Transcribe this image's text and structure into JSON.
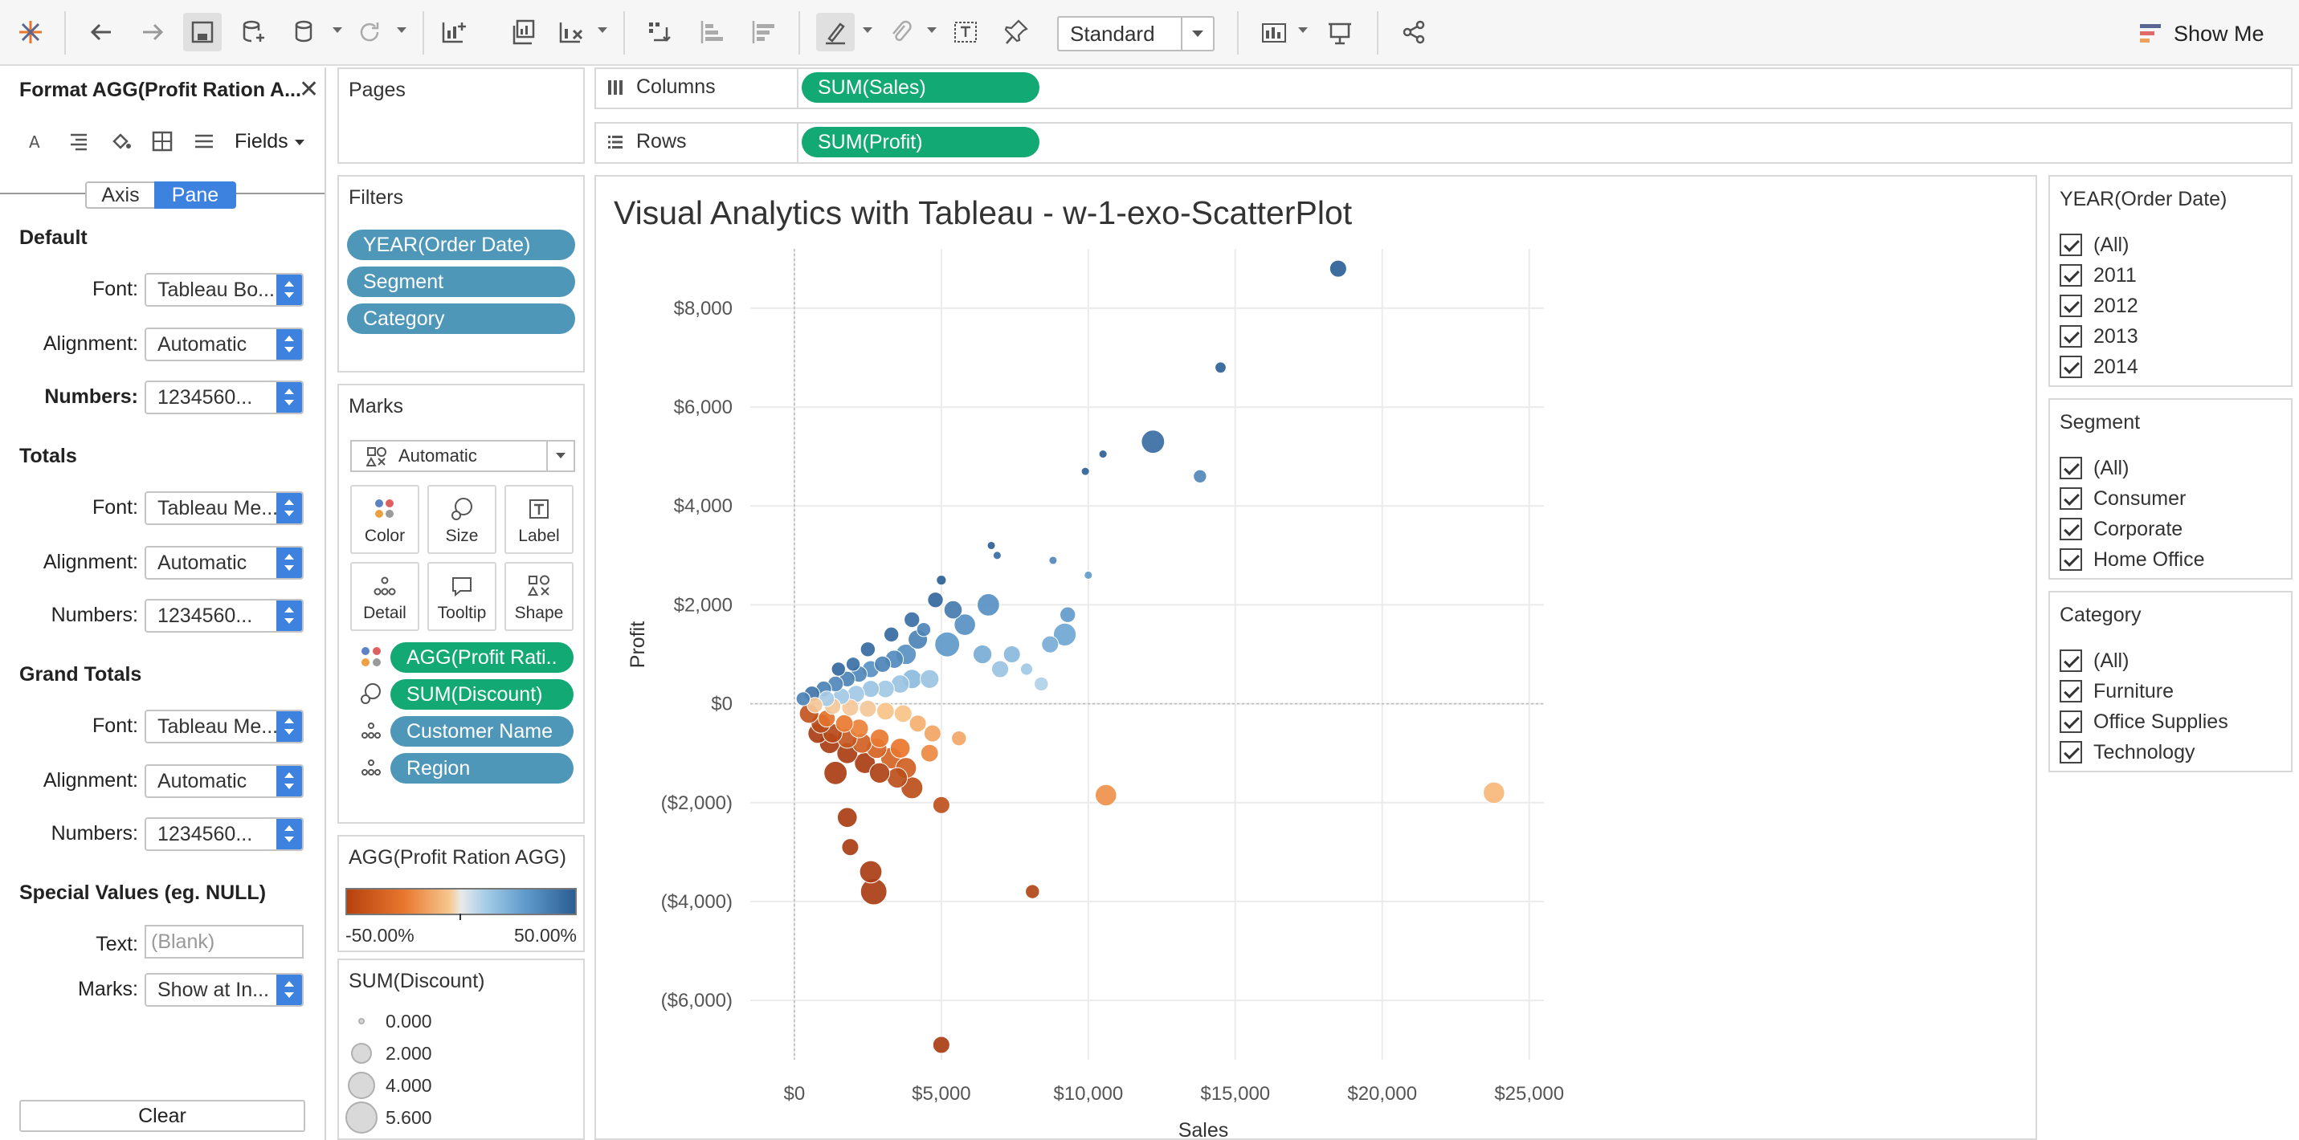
{
  "toolbar": {
    "view_mode": "Standard",
    "show_me_label": "Show Me"
  },
  "format_pane": {
    "title": "Format AGG(Profit Ration A...",
    "fields_label": "Fields",
    "tabs": {
      "axis": "Axis",
      "pane": "Pane"
    },
    "default": {
      "title": "Default",
      "font_label": "Font:",
      "font_value": "Tableau Bo...",
      "alignment_label": "Alignment:",
      "alignment_value": "Automatic",
      "numbers_label": "Numbers:",
      "numbers_value": "1234560..."
    },
    "totals": {
      "title": "Totals",
      "font_label": "Font:",
      "font_value": "Tableau Me...",
      "alignment_label": "Alignment:",
      "alignment_value": "Automatic",
      "numbers_label": "Numbers:",
      "numbers_value": "1234560..."
    },
    "grand_totals": {
      "title": "Grand Totals",
      "font_label": "Font:",
      "font_value": "Tableau Me...",
      "alignment_label": "Alignment:",
      "alignment_value": "Automatic",
      "numbers_label": "Numbers:",
      "numbers_value": "1234560..."
    },
    "special": {
      "title": "Special Values (eg. NULL)",
      "text_label": "Text:",
      "text_placeholder": "(Blank)",
      "marks_label": "Marks:",
      "marks_value": "Show at In..."
    },
    "clear_label": "Clear"
  },
  "pages": {
    "title": "Pages"
  },
  "filters": {
    "title": "Filters",
    "pills": [
      "YEAR(Order Date)",
      "Segment",
      "Category"
    ]
  },
  "marks": {
    "title": "Marks",
    "type": "Automatic",
    "buttons": [
      "Color",
      "Size",
      "Label",
      "Detail",
      "Tooltip",
      "Shape"
    ],
    "fields": [
      {
        "icon": "color",
        "label": "AGG(Profit Rati..",
        "color": "green"
      },
      {
        "icon": "size",
        "label": "SUM(Discount)",
        "color": "green"
      },
      {
        "icon": "detail",
        "label": "Customer Name",
        "color": "blue"
      },
      {
        "icon": "detail",
        "label": "Region",
        "color": "blue"
      }
    ]
  },
  "color_legend": {
    "title": "AGG(Profit Ration AGG)",
    "min_label": "-50.00%",
    "max_label": "50.00%"
  },
  "size_legend": {
    "title": "SUM(Discount)",
    "items": [
      "0.000",
      "2.000",
      "4.000",
      "5.600"
    ]
  },
  "shelves": {
    "columns_label": "Columns",
    "columns_pill": "SUM(Sales)",
    "rows_label": "Rows",
    "rows_pill": "SUM(Profit)"
  },
  "viz": {
    "title": "Visual Analytics with Tableau - w-1-exo-ScatterPlot"
  },
  "chart_data": {
    "type": "scatter",
    "title": "Visual Analytics with Tableau - w-1-exo-ScatterPlot",
    "xlabel": "Sales",
    "ylabel": "Profit",
    "xlim": [
      -1500,
      25500
    ],
    "ylim": [
      -7200,
      9200
    ],
    "x_ticks": [
      0,
      5000,
      10000,
      15000,
      20000,
      25000
    ],
    "x_tick_labels": [
      "$0",
      "$5,000",
      "$10,000",
      "$15,000",
      "$20,000",
      "$25,000"
    ],
    "y_ticks": [
      -6000,
      -4000,
      -2000,
      0,
      2000,
      4000,
      6000,
      8000
    ],
    "y_tick_labels": [
      "($6,000)",
      "($4,000)",
      "($2,000)",
      "$0",
      "$2,000",
      "$4,000",
      "$6,000",
      "$8,000"
    ],
    "color_field": "AGG(Profit Ration AGG)",
    "color_range": [
      -0.5,
      0.5
    ],
    "size_field": "SUM(Discount)",
    "size_range": [
      0,
      5.6
    ],
    "grid": true,
    "points": [
      {
        "x": 18500,
        "y": 8800,
        "ratio": 0.48,
        "discount": 1.0
      },
      {
        "x": 14500,
        "y": 6800,
        "ratio": 0.47,
        "discount": 0.3
      },
      {
        "x": 12200,
        "y": 5300,
        "ratio": 0.43,
        "discount": 2.2
      },
      {
        "x": 13800,
        "y": 4600,
        "ratio": 0.33,
        "discount": 0.5
      },
      {
        "x": 10500,
        "y": 5050,
        "ratio": 0.48,
        "discount": 0.1
      },
      {
        "x": 9900,
        "y": 4700,
        "ratio": 0.47,
        "discount": 0.1
      },
      {
        "x": 6700,
        "y": 3200,
        "ratio": 0.48,
        "discount": 0.1
      },
      {
        "x": 8800,
        "y": 2900,
        "ratio": 0.33,
        "discount": 0.1
      },
      {
        "x": 10000,
        "y": 2600,
        "ratio": 0.26,
        "discount": 0.1
      },
      {
        "x": 6900,
        "y": 3000,
        "ratio": 0.43,
        "discount": 0.1
      },
      {
        "x": 6600,
        "y": 2000,
        "ratio": 0.3,
        "discount": 2.0
      },
      {
        "x": 9300,
        "y": 1800,
        "ratio": 0.26,
        "discount": 0.8
      },
      {
        "x": 9200,
        "y": 1400,
        "ratio": 0.22,
        "discount": 2.1
      },
      {
        "x": 8700,
        "y": 1200,
        "ratio": 0.2,
        "discount": 1.0
      },
      {
        "x": 5400,
        "y": 1900,
        "ratio": 0.38,
        "discount": 1.2
      },
      {
        "x": 5800,
        "y": 1600,
        "ratio": 0.3,
        "discount": 1.8
      },
      {
        "x": 5200,
        "y": 1200,
        "ratio": 0.27,
        "discount": 2.6
      },
      {
        "x": 6400,
        "y": 1000,
        "ratio": 0.2,
        "discount": 1.3
      },
      {
        "x": 7400,
        "y": 1000,
        "ratio": 0.16,
        "discount": 1.0
      },
      {
        "x": 7000,
        "y": 700,
        "ratio": 0.12,
        "discount": 1.0
      },
      {
        "x": 7900,
        "y": 700,
        "ratio": 0.1,
        "discount": 0.4
      },
      {
        "x": 8400,
        "y": 400,
        "ratio": 0.07,
        "discount": 0.6
      },
      {
        "x": 4200,
        "y": 1300,
        "ratio": 0.35,
        "discount": 1.4
      },
      {
        "x": 3800,
        "y": 1000,
        "ratio": 0.3,
        "discount": 1.6
      },
      {
        "x": 3400,
        "y": 900,
        "ratio": 0.32,
        "discount": 1.2
      },
      {
        "x": 3000,
        "y": 800,
        "ratio": 0.35,
        "discount": 0.9
      },
      {
        "x": 2600,
        "y": 700,
        "ratio": 0.3,
        "discount": 1.0
      },
      {
        "x": 2200,
        "y": 600,
        "ratio": 0.33,
        "discount": 0.9
      },
      {
        "x": 1800,
        "y": 500,
        "ratio": 0.35,
        "discount": 0.8
      },
      {
        "x": 1400,
        "y": 400,
        "ratio": 0.33,
        "discount": 0.8
      },
      {
        "x": 1000,
        "y": 300,
        "ratio": 0.35,
        "discount": 0.8
      },
      {
        "x": 600,
        "y": 200,
        "ratio": 0.4,
        "discount": 0.8
      },
      {
        "x": 300,
        "y": 100,
        "ratio": 0.35,
        "discount": 0.6
      },
      {
        "x": 4600,
        "y": 500,
        "ratio": 0.12,
        "discount": 1.3
      },
      {
        "x": 4000,
        "y": 500,
        "ratio": 0.15,
        "discount": 1.4
      },
      {
        "x": 3600,
        "y": 400,
        "ratio": 0.12,
        "discount": 1.2
      },
      {
        "x": 3100,
        "y": 300,
        "ratio": 0.1,
        "discount": 1.1
      },
      {
        "x": 2600,
        "y": 300,
        "ratio": 0.12,
        "discount": 1.0
      },
      {
        "x": 2100,
        "y": 200,
        "ratio": 0.1,
        "discount": 1.0
      },
      {
        "x": 1600,
        "y": 150,
        "ratio": 0.1,
        "discount": 0.9
      },
      {
        "x": 1100,
        "y": 100,
        "ratio": 0.09,
        "discount": 0.8
      },
      {
        "x": 4400,
        "y": 1500,
        "ratio": 0.34,
        "discount": 0.6
      },
      {
        "x": 4800,
        "y": 2100,
        "ratio": 0.45,
        "discount": 0.8
      },
      {
        "x": 5000,
        "y": 2500,
        "ratio": 0.48,
        "discount": 0.2
      },
      {
        "x": 4000,
        "y": 1700,
        "ratio": 0.42,
        "discount": 0.8
      },
      {
        "x": 3300,
        "y": 1400,
        "ratio": 0.44,
        "discount": 0.7
      },
      {
        "x": 2500,
        "y": 1100,
        "ratio": 0.44,
        "discount": 0.7
      },
      {
        "x": 2000,
        "y": 800,
        "ratio": 0.42,
        "discount": 0.6
      },
      {
        "x": 1500,
        "y": 700,
        "ratio": 0.45,
        "discount": 0.6
      },
      {
        "x": 3700,
        "y": -200,
        "ratio": -0.05,
        "discount": 1.1
      },
      {
        "x": 3100,
        "y": -150,
        "ratio": -0.05,
        "discount": 1.1
      },
      {
        "x": 2500,
        "y": -100,
        "ratio": -0.04,
        "discount": 1.0
      },
      {
        "x": 1900,
        "y": -80,
        "ratio": -0.04,
        "discount": 1.0
      },
      {
        "x": 1300,
        "y": -50,
        "ratio": -0.04,
        "discount": 0.9
      },
      {
        "x": 700,
        "y": -30,
        "ratio": -0.04,
        "discount": 0.8
      },
      {
        "x": 4200,
        "y": -400,
        "ratio": -0.1,
        "discount": 1.0
      },
      {
        "x": 4700,
        "y": -600,
        "ratio": -0.13,
        "discount": 1.0
      },
      {
        "x": 5600,
        "y": -700,
        "ratio": -0.12,
        "discount": 0.7
      },
      {
        "x": 4600,
        "y": -1000,
        "ratio": -0.2,
        "discount": 1.1
      },
      {
        "x": 3600,
        "y": -900,
        "ratio": -0.25,
        "discount": 1.5
      },
      {
        "x": 2900,
        "y": -700,
        "ratio": -0.24,
        "discount": 1.3
      },
      {
        "x": 2200,
        "y": -500,
        "ratio": -0.22,
        "discount": 1.3
      },
      {
        "x": 1700,
        "y": -400,
        "ratio": -0.24,
        "discount": 1.1
      },
      {
        "x": 1100,
        "y": -300,
        "ratio": -0.27,
        "discount": 1.0
      },
      {
        "x": 3800,
        "y": -1300,
        "ratio": -0.35,
        "discount": 1.7
      },
      {
        "x": 3300,
        "y": -1100,
        "ratio": -0.33,
        "discount": 1.8
      },
      {
        "x": 2800,
        "y": -900,
        "ratio": -0.33,
        "discount": 1.6
      },
      {
        "x": 2300,
        "y": -800,
        "ratio": -0.35,
        "discount": 1.5
      },
      {
        "x": 1800,
        "y": -700,
        "ratio": -0.39,
        "discount": 1.5
      },
      {
        "x": 1300,
        "y": -600,
        "ratio": -0.45,
        "discount": 1.4
      },
      {
        "x": 900,
        "y": -400,
        "ratio": -0.44,
        "discount": 1.4
      },
      {
        "x": 500,
        "y": -200,
        "ratio": -0.4,
        "discount": 1.4
      },
      {
        "x": 4000,
        "y": -1700,
        "ratio": -0.43,
        "discount": 1.9
      },
      {
        "x": 3500,
        "y": -1500,
        "ratio": -0.43,
        "discount": 1.6
      },
      {
        "x": 2900,
        "y": -1400,
        "ratio": -0.48,
        "discount": 1.6
      },
      {
        "x": 2400,
        "y": -1200,
        "ratio": -0.5,
        "discount": 1.7
      },
      {
        "x": 1800,
        "y": -1000,
        "ratio": -0.5,
        "discount": 1.7
      },
      {
        "x": 1400,
        "y": -1400,
        "ratio": -0.5,
        "discount": 2.2
      },
      {
        "x": 1200,
        "y": -800,
        "ratio": -0.5,
        "discount": 1.6
      },
      {
        "x": 800,
        "y": -600,
        "ratio": -0.5,
        "discount": 1.5
      },
      {
        "x": 5000,
        "y": -2050,
        "ratio": -0.42,
        "discount": 1.0
      },
      {
        "x": 1800,
        "y": -2300,
        "ratio": -0.5,
        "discount": 1.5
      },
      {
        "x": 1900,
        "y": -2900,
        "ratio": -0.5,
        "discount": 1.0
      },
      {
        "x": 2600,
        "y": -3400,
        "ratio": -0.5,
        "discount": 2.0
      },
      {
        "x": 2700,
        "y": -3800,
        "ratio": -0.5,
        "discount": 3.0
      },
      {
        "x": 8100,
        "y": -3800,
        "ratio": -0.47,
        "discount": 0.6
      },
      {
        "x": 5000,
        "y": -6900,
        "ratio": -0.5,
        "discount": 1.0
      },
      {
        "x": 10600,
        "y": -1850,
        "ratio": -0.18,
        "discount": 1.8
      },
      {
        "x": 23800,
        "y": -1800,
        "ratio": -0.08,
        "discount": 1.8
      }
    ]
  },
  "filter_year": {
    "title": "YEAR(Order Date)",
    "items": [
      "(All)",
      "2011",
      "2012",
      "2013",
      "2014"
    ]
  },
  "filter_segment": {
    "title": "Segment",
    "items": [
      "(All)",
      "Consumer",
      "Corporate",
      "Home Office"
    ]
  },
  "filter_category": {
    "title": "Category",
    "items": [
      "(All)",
      "Furniture",
      "Office Supplies",
      "Technology"
    ]
  }
}
